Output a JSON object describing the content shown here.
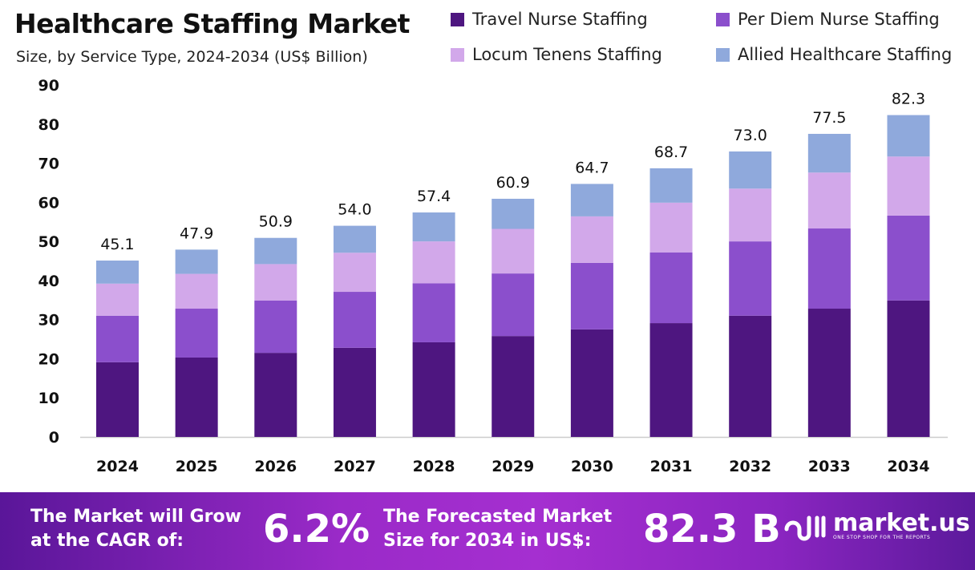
{
  "chart_data": {
    "type": "bar",
    "stacked": true,
    "title": "Healthcare Staffing Market",
    "subtitle": "Size, by Service Type, 2024-2034 (US$ Billion)",
    "categories": [
      "2024",
      "2025",
      "2026",
      "2027",
      "2028",
      "2029",
      "2030",
      "2031",
      "2032",
      "2033",
      "2034"
    ],
    "series": [
      {
        "name": "Travel Nurse Staffing",
        "color": "#4e1680",
        "values": [
          19.1,
          20.3,
          21.5,
          22.8,
          24.2,
          25.8,
          27.5,
          29.1,
          31.0,
          32.8,
          34.9
        ]
      },
      {
        "name": "Per Diem Nurse Staffing",
        "color": "#8b4fcc",
        "values": [
          11.9,
          12.5,
          13.4,
          14.3,
          15.1,
          16.0,
          17.0,
          18.1,
          19.0,
          20.5,
          21.7
        ]
      },
      {
        "name": "Locum Tenens Staffing",
        "color": "#d2a8ea",
        "values": [
          8.2,
          8.9,
          9.3,
          10.0,
          10.7,
          11.4,
          11.9,
          12.7,
          13.5,
          14.3,
          15.1
        ]
      },
      {
        "name": "Allied Healthcare Staffing",
        "color": "#8fa9dc",
        "values": [
          5.9,
          6.2,
          6.7,
          6.9,
          7.4,
          7.7,
          8.3,
          8.8,
          9.5,
          9.9,
          10.6
        ]
      }
    ],
    "totals": [
      "45.1",
      "47.9",
      "50.9",
      "54.0",
      "57.4",
      "60.9",
      "64.7",
      "68.7",
      "73.0",
      "77.5",
      "82.3"
    ],
    "ylim": [
      0,
      90
    ],
    "yticks": [
      "0",
      "10",
      "20",
      "30",
      "40",
      "50",
      "60",
      "70",
      "80",
      "90"
    ],
    "grid": false,
    "legend": "top-right"
  },
  "footer": {
    "cagr_label_1": "The Market will Grow",
    "cagr_label_2": "at the CAGR of:",
    "cagr_value": "6.2%",
    "forecast_label_1": "The Forecasted Market",
    "forecast_label_2": "Size for 2034 in US$:",
    "forecast_value": "82.3 B",
    "brand": "market.us",
    "tagline": "ONE STOP SHOP FOR THE REPORTS"
  }
}
